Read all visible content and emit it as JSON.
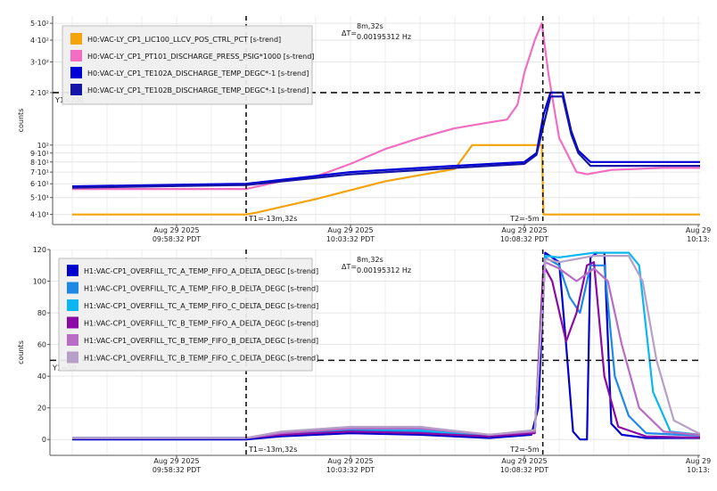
{
  "chart_data": [
    {
      "type": "line",
      "ylabel": "counts",
      "yscale": "log",
      "ylim": [
        35,
        550
      ],
      "grid": true,
      "legend_position": "top-left",
      "y_ticks": [
        {
          "v": 500,
          "label": "5·10²"
        },
        {
          "v": 400,
          "label": "4·10²"
        },
        {
          "v": 300,
          "label": "3·10²"
        },
        {
          "v": 200,
          "label": "2·10²"
        },
        {
          "v": 100,
          "label": "10²"
        },
        {
          "v": 90,
          "label": "9·10¹"
        },
        {
          "v": 80,
          "label": "8·10¹"
        },
        {
          "v": 70,
          "label": "7·10¹"
        },
        {
          "v": 60,
          "label": "6·10¹"
        },
        {
          "v": 50,
          "label": "5·10¹"
        },
        {
          "v": 40,
          "label": "4·10¹"
        }
      ],
      "x_ticks": [
        {
          "m": 3,
          "line1": "Aug 29 2025",
          "line2": "09:58:32 PDT"
        },
        {
          "m": 8,
          "line1": "Aug 29 2025",
          "line2": "10:03:32 PDT"
        },
        {
          "m": 13,
          "line1": "Aug 29 2025",
          "line2": "10:08:32 PDT"
        },
        {
          "m": 18,
          "line1": "Aug 29",
          "line2": "10:13:"
        }
      ],
      "cursors": {
        "t1": 5,
        "t1_label": "T1=-13m,32s",
        "t2": 13.53,
        "t2_label": "T2=-5m",
        "y1": 200,
        "y1_label": "Y1=200"
      },
      "delta": {
        "label": "ΔT=",
        "line1": "8m,32s",
        "line2": "0.00195312 Hz"
      },
      "series": [
        {
          "name": "H0:VAC-LY_CP1_LIC100_LLCV_POS_CTRL_PCT [s-trend]",
          "color": "#f5a30a",
          "points": [
            [
              0,
              40
            ],
            [
              5,
              40
            ],
            [
              5.3,
              41
            ],
            [
              7,
              49
            ],
            [
              9,
              62
            ],
            [
              11,
              73
            ],
            [
              11.5,
              100
            ],
            [
              13.5,
              100
            ],
            [
              13.55,
              40
            ],
            [
              18.5,
              40
            ]
          ]
        },
        {
          "name": "H0:VAC-LY_CP1_PT101_DISCHARGE_PRESS_PSIG*1000 [s-trend]",
          "color": "#f26ec2",
          "points": [
            [
              0,
              56
            ],
            [
              5,
              56
            ],
            [
              6,
              62
            ],
            [
              7,
              66
            ],
            [
              8,
              78
            ],
            [
              9,
              95
            ],
            [
              10,
              110
            ],
            [
              11,
              125
            ],
            [
              12,
              135
            ],
            [
              12.5,
              140
            ],
            [
              12.8,
              170
            ],
            [
              13,
              260
            ],
            [
              13.3,
              400
            ],
            [
              13.5,
              500
            ],
            [
              13.7,
              250
            ],
            [
              14,
              110
            ],
            [
              14.5,
              70
            ],
            [
              14.8,
              68
            ],
            [
              15.5,
              72
            ],
            [
              17,
              74
            ],
            [
              18.5,
              74
            ]
          ]
        },
        {
          "name": "H0:VAC-LY_CP1_TE102A_DISCHARGE_TEMP_DEGC*-1 [s-trend]",
          "color": "#0000d6",
          "points": [
            [
              0,
              58
            ],
            [
              5,
              60
            ],
            [
              8,
              70
            ],
            [
              11,
              76
            ],
            [
              13,
              80
            ],
            [
              13.35,
              90
            ],
            [
              13.55,
              150
            ],
            [
              13.75,
              200
            ],
            [
              14.1,
              200
            ],
            [
              14.35,
              120
            ],
            [
              14.55,
              93
            ],
            [
              14.9,
              80
            ],
            [
              15.5,
              80
            ],
            [
              18.5,
              80
            ]
          ]
        },
        {
          "name": "H0:VAC-LY_CP1_TE102B_DISCHARGE_TEMP_DEGC*-1 [s-trend]",
          "color": "#1515a8",
          "points": [
            [
              0,
              57
            ],
            [
              5,
              59
            ],
            [
              8,
              68
            ],
            [
              11,
              74
            ],
            [
              13,
              78
            ],
            [
              13.35,
              88
            ],
            [
              13.55,
              130
            ],
            [
              13.75,
              190
            ],
            [
              14.1,
              190
            ],
            [
              14.35,
              115
            ],
            [
              14.55,
              90
            ],
            [
              14.9,
              76
            ],
            [
              15.5,
              76
            ],
            [
              18.5,
              76
            ]
          ]
        }
      ]
    },
    {
      "type": "line",
      "ylabel": "counts",
      "ylim": [
        -10,
        120
      ],
      "grid": true,
      "legend_position": "top-left",
      "y_ticks": [
        {
          "v": 120,
          "label": "120"
        },
        {
          "v": 100,
          "label": "100"
        },
        {
          "v": 80,
          "label": "80"
        },
        {
          "v": 60,
          "label": "60"
        },
        {
          "v": 40,
          "label": "40"
        },
        {
          "v": 20,
          "label": "20"
        },
        {
          "v": 0,
          "label": "0"
        }
      ],
      "x_ticks": [
        {
          "m": 3,
          "line1": "Aug 29 2025",
          "line2": "09:58:32 PDT"
        },
        {
          "m": 8,
          "line1": "Aug 29 2025",
          "line2": "10:03:32 PDT"
        },
        {
          "m": 13,
          "line1": "Aug 29 2025",
          "line2": "10:08:32 PDT"
        },
        {
          "m": 18,
          "line1": "Aug 29",
          "line2": "10:13:"
        }
      ],
      "cursors": {
        "t1": 5,
        "t1_label": "T1=-13m,32s",
        "t2": 13.53,
        "t2_label": "T2=-5m",
        "y1": 50,
        "y1_label": "Y1=50"
      },
      "delta": {
        "label": "ΔT=",
        "line1": "8m,32s",
        "line2": "0.00195312 Hz"
      },
      "series": [
        {
          "name": "H1:VAC-CP1_OVERFILL_TC_A_TEMP_FIFO_A_DELTA_DEGC [s-trend]",
          "color": "#0000cc",
          "points": [
            [
              0,
              0
            ],
            [
              5,
              0
            ],
            [
              6,
              2
            ],
            [
              8,
              4
            ],
            [
              10,
              3
            ],
            [
              12,
              1
            ],
            [
              13.2,
              3
            ],
            [
              13.4,
              20
            ],
            [
              13.6,
              118
            ],
            [
              14,
              112
            ],
            [
              14.2,
              60
            ],
            [
              14.4,
              5
            ],
            [
              14.6,
              0
            ],
            [
              14.8,
              0
            ],
            [
              14.9,
              115
            ],
            [
              15.1,
              118
            ],
            [
              15.3,
              118
            ],
            [
              15.5,
              10
            ],
            [
              15.8,
              3
            ],
            [
              16.5,
              1
            ],
            [
              18.5,
              1
            ]
          ]
        },
        {
          "name": "H1:VAC-CP1_OVERFILL_TC_A_TEMP_FIFO_B_DELTA_DEGC [s-trend]",
          "color": "#1e88e5",
          "points": [
            [
              0,
              1
            ],
            [
              5,
              1
            ],
            [
              6,
              3
            ],
            [
              8,
              6
            ],
            [
              10,
              5
            ],
            [
              12,
              2
            ],
            [
              13.3,
              5
            ],
            [
              13.6,
              115
            ],
            [
              14,
              110
            ],
            [
              14.3,
              90
            ],
            [
              14.6,
              80
            ],
            [
              14.9,
              110
            ],
            [
              15.3,
              110
            ],
            [
              15.6,
              40
            ],
            [
              16,
              15
            ],
            [
              16.5,
              4
            ],
            [
              18.5,
              2
            ]
          ]
        },
        {
          "name": "H1:VAC-CP1_OVERFILL_TC_A_TEMP_FIFO_C_DELTA_DEGC [s-trend]",
          "color": "#0bb6f2",
          "points": [
            [
              0,
              1
            ],
            [
              5,
              1
            ],
            [
              6,
              4
            ],
            [
              8,
              7
            ],
            [
              10,
              6
            ],
            [
              12,
              2
            ],
            [
              13.3,
              6
            ],
            [
              13.6,
              116
            ],
            [
              14,
              115
            ],
            [
              15,
              118
            ],
            [
              16,
              118
            ],
            [
              16.3,
              110
            ],
            [
              16.7,
              30
            ],
            [
              17.2,
              5
            ],
            [
              18.5,
              2
            ]
          ]
        },
        {
          "name": "H1:VAC-CP1_OVERFILL_TC_B_TEMP_FIFO_A_DELTA_DEGC [s-trend]",
          "color": "#8b0aa5",
          "points": [
            [
              0,
              1
            ],
            [
              5,
              1
            ],
            [
              6,
              3
            ],
            [
              8,
              5
            ],
            [
              10,
              4
            ],
            [
              12,
              2
            ],
            [
              13.3,
              4
            ],
            [
              13.55,
              110
            ],
            [
              13.8,
              100
            ],
            [
              14.2,
              62
            ],
            [
              14.5,
              80
            ],
            [
              14.8,
              110
            ],
            [
              15,
              112
            ],
            [
              15.3,
              40
            ],
            [
              15.7,
              8
            ],
            [
              16.5,
              2
            ],
            [
              18.5,
              1
            ]
          ]
        },
        {
          "name": "H1:VAC-CP1_OVERFILL_TC_B_TEMP_FIFO_B_DELTA_DEGC [s-trend]",
          "color": "#b86cc6",
          "points": [
            [
              0,
              1
            ],
            [
              5,
              1
            ],
            [
              6,
              4
            ],
            [
              8,
              7
            ],
            [
              10,
              7
            ],
            [
              12,
              3
            ],
            [
              13.3,
              5
            ],
            [
              13.6,
              112
            ],
            [
              14,
              108
            ],
            [
              14.5,
              100
            ],
            [
              15,
              108
            ],
            [
              15.4,
              100
            ],
            [
              15.8,
              60
            ],
            [
              16.3,
              20
            ],
            [
              17,
              5
            ],
            [
              18.5,
              2
            ]
          ]
        },
        {
          "name": "H1:VAC-CP1_OVERFILL_TC_B_TEMP_FIFO_C_DELTA_DEGC [s-trend]",
          "color": "#b7a0c8",
          "points": [
            [
              0,
              1
            ],
            [
              5,
              1
            ],
            [
              6,
              5
            ],
            [
              8,
              8
            ],
            [
              10,
              8
            ],
            [
              12,
              3
            ],
            [
              13.3,
              6
            ],
            [
              13.6,
              114
            ],
            [
              14,
              112
            ],
            [
              15,
              116
            ],
            [
              16,
              116
            ],
            [
              16.4,
              100
            ],
            [
              16.8,
              50
            ],
            [
              17.3,
              12
            ],
            [
              18,
              4
            ],
            [
              18.5,
              3
            ]
          ]
        }
      ]
    }
  ]
}
